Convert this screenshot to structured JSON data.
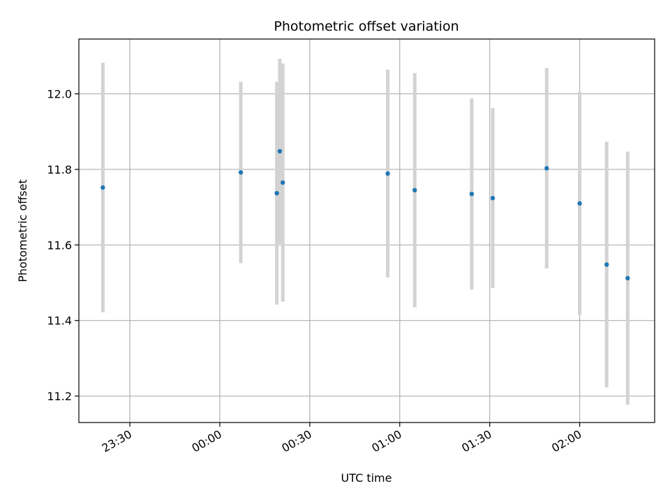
{
  "chart_data": {
    "type": "scatter",
    "title": "Photometric offset variation",
    "xlabel": "UTC time",
    "ylabel": "Photometric offset",
    "x_ticks": [
      "23:30",
      "00:00",
      "00:30",
      "01:00",
      "01:30",
      "02:00"
    ],
    "y_ticks": [
      "11.2",
      "11.4",
      "11.6",
      "11.8",
      "12.0"
    ],
    "xlim": [
      "23:13",
      "02:25"
    ],
    "ylim": [
      11.13,
      12.145
    ],
    "grid": true,
    "point_color": "#1f77b4",
    "errorbar_color": "#d3d3d3",
    "points": [
      {
        "x": "23:21",
        "y": 11.752,
        "yerr": 0.33
      },
      {
        "x": "00:07",
        "y": 11.792,
        "yerr": 0.24
      },
      {
        "x": "00:19",
        "y": 11.737,
        "yerr": 0.295
      },
      {
        "x": "00:20",
        "y": 11.848,
        "yerr": 0.245
      },
      {
        "x": "00:21",
        "y": 11.765,
        "yerr": 0.315
      },
      {
        "x": "00:56",
        "y": 11.789,
        "yerr": 0.275
      },
      {
        "x": "01:05",
        "y": 11.745,
        "yerr": 0.31
      },
      {
        "x": "01:24",
        "y": 11.735,
        "yerr": 0.253
      },
      {
        "x": "01:31",
        "y": 11.724,
        "yerr": 0.238
      },
      {
        "x": "01:49",
        "y": 11.803,
        "yerr": 0.265
      },
      {
        "x": "02:00",
        "y": 11.71,
        "yerr": 0.295
      },
      {
        "x": "02:09",
        "y": 11.548,
        "yerr": 0.325
      },
      {
        "x": "02:16",
        "y": 11.512,
        "yerr": 0.335
      }
    ]
  }
}
